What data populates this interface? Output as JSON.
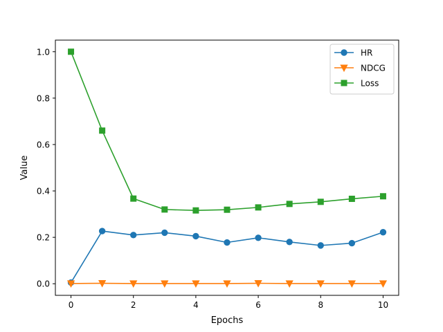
{
  "chart_data": {
    "type": "line",
    "title": "",
    "xlabel": "Epochs",
    "ylabel": "Value",
    "xlim": [
      -0.5,
      10.5
    ],
    "ylim": [
      -0.05,
      1.05
    ],
    "x_ticks": [
      0,
      2,
      4,
      6,
      8,
      10
    ],
    "y_ticks": [
      0.0,
      0.2,
      0.4,
      0.6,
      0.8,
      1.0
    ],
    "x_tick_labels": [
      "0",
      "2",
      "4",
      "6",
      "8",
      "10"
    ],
    "y_tick_labels": [
      "0.0",
      "0.2",
      "0.4",
      "0.6",
      "0.8",
      "1.0"
    ],
    "grid": false,
    "legend_position": "top-right",
    "x": [
      0,
      1,
      2,
      3,
      4,
      5,
      6,
      7,
      8,
      9,
      10
    ],
    "series": [
      {
        "name": "HR",
        "color": "#1f77b4",
        "marker": "circle",
        "values": [
          0.005,
          0.227,
          0.21,
          0.22,
          0.205,
          0.178,
          0.198,
          0.18,
          0.165,
          0.175,
          0.222
        ]
      },
      {
        "name": "NDCG",
        "color": "#ff7f0e",
        "marker": "triangle-down",
        "values": [
          0.001,
          0.002,
          0.001,
          0.001,
          0.001,
          0.001,
          0.002,
          0.001,
          0.001,
          0.001,
          0.001
        ]
      },
      {
        "name": "Loss",
        "color": "#2ca02c",
        "marker": "square",
        "values": [
          1.0,
          0.66,
          0.367,
          0.32,
          0.316,
          0.319,
          0.329,
          0.344,
          0.353,
          0.366,
          0.377
        ]
      }
    ]
  }
}
